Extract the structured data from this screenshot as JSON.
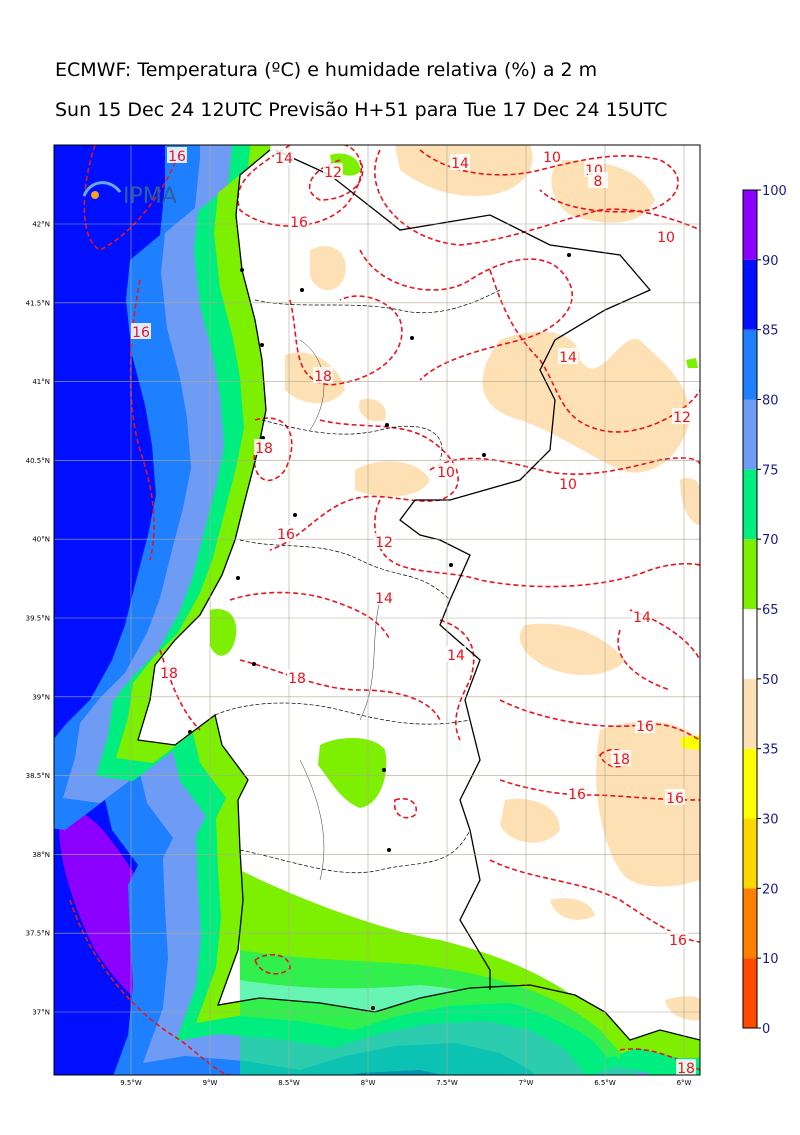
{
  "header": {
    "title": "ECMWF: Temperatura (ºC) e humidade relativa (%) a 2 m",
    "subtitle": "Sun 15 Dec 24 12UTC Previsão H+51 para Tue 17 Dec 24 15UTC"
  },
  "logo": "IPMA",
  "map": {
    "lat_labels": [
      "42°N",
      "41.5°N",
      "41°N",
      "40.5°N",
      "40°N",
      "39.5°N",
      "39°N",
      "38.5°N",
      "38°N",
      "37.5°N",
      "37°N"
    ],
    "lon_labels": [
      "9.5°W",
      "9°W",
      "8.5°W",
      "8°W",
      "7.5°W",
      "7°W",
      "6.5°W",
      "6°W"
    ],
    "contour_labels": [
      16,
      14,
      12,
      14,
      10,
      10,
      8,
      10,
      16,
      16,
      18,
      14,
      12,
      18,
      10,
      10,
      16,
      12,
      14,
      14,
      14,
      18,
      18,
      16,
      18,
      16,
      16,
      16,
      18
    ]
  },
  "colorbar": {
    "ticks": [
      0,
      10,
      20,
      30,
      35,
      50,
      65,
      70,
      75,
      80,
      85,
      90,
      100
    ],
    "colors": [
      "#ff4a00",
      "#ff8000",
      "#ffd700",
      "#ffff00",
      "#fde1b4",
      "#ffffff",
      "#7cf000",
      "#00ee80",
      "#6e9cf5",
      "#1e80ff",
      "#0010ff",
      "#8c00ff"
    ]
  }
}
